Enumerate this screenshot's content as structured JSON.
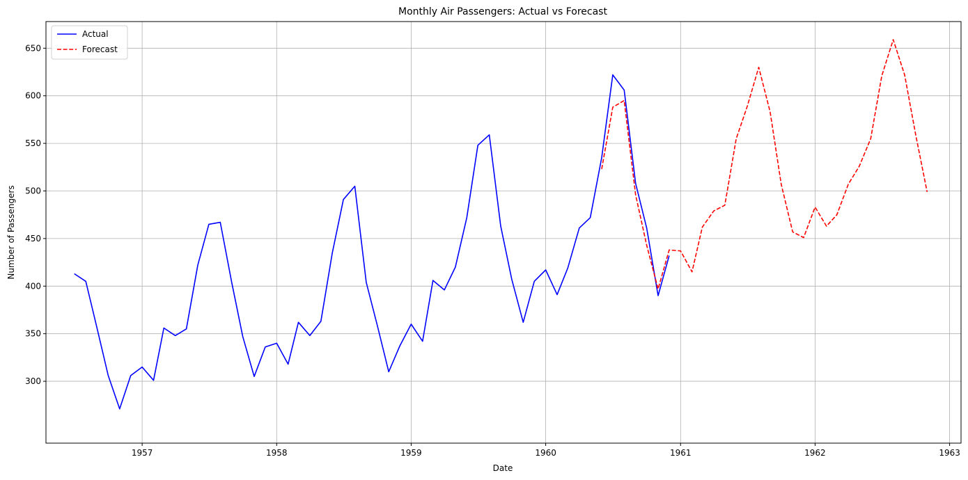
{
  "chart_data": {
    "type": "line",
    "title": "Monthly Air Passengers: Actual vs Forecast",
    "xlabel": "Date",
    "ylabel": "Number of Passengers",
    "xlim": [
      "1956-04-15",
      "1963-02-01"
    ],
    "ylim": [
      235,
      678
    ],
    "x_ticks": [
      "1957",
      "1958",
      "1959",
      "1960",
      "1961",
      "1962",
      "1963"
    ],
    "y_ticks": [
      300,
      350,
      400,
      450,
      500,
      550,
      600,
      650
    ],
    "grid": true,
    "legend_position": "top-left",
    "series": [
      {
        "name": "Actual",
        "color": "#0000ff",
        "style": "solid",
        "x": [
          "1956-07",
          "1956-08",
          "1956-09",
          "1956-10",
          "1956-11",
          "1956-12",
          "1957-01",
          "1957-02",
          "1957-03",
          "1957-04",
          "1957-05",
          "1957-06",
          "1957-07",
          "1957-08",
          "1957-09",
          "1957-10",
          "1957-11",
          "1957-12",
          "1958-01",
          "1958-02",
          "1958-03",
          "1958-04",
          "1958-05",
          "1958-06",
          "1958-07",
          "1958-08",
          "1958-09",
          "1958-10",
          "1958-11",
          "1958-12",
          "1959-01",
          "1959-02",
          "1959-03",
          "1959-04",
          "1959-05",
          "1959-06",
          "1959-07",
          "1959-08",
          "1959-09",
          "1959-10",
          "1959-11",
          "1959-12",
          "1960-01",
          "1960-02",
          "1960-03",
          "1960-04",
          "1960-05",
          "1960-06",
          "1960-07",
          "1960-08",
          "1960-09",
          "1960-10",
          "1960-11",
          "1960-12"
        ],
        "values": [
          413,
          405,
          355,
          306,
          271,
          306,
          315,
          301,
          356,
          348,
          355,
          422,
          465,
          467,
          404,
          347,
          305,
          336,
          340,
          318,
          362,
          348,
          363,
          435,
          491,
          505,
          404,
          359,
          310,
          337,
          360,
          342,
          406,
          396,
          420,
          472,
          548,
          559,
          463,
          407,
          362,
          405,
          417,
          391,
          419,
          461,
          472,
          535,
          622,
          606,
          508,
          461,
          390,
          432
        ]
      },
      {
        "name": "Forecast",
        "color": "#ff0000",
        "style": "dashed",
        "x": [
          "1960-06",
          "1960-07",
          "1960-08",
          "1960-09",
          "1960-10",
          "1960-11",
          "1960-12",
          "1961-01",
          "1961-02",
          "1961-03",
          "1961-04",
          "1961-05",
          "1961-06",
          "1961-07",
          "1961-08",
          "1961-09",
          "1961-10",
          "1961-11",
          "1961-12",
          "1962-01",
          "1962-02",
          "1962-03",
          "1962-04",
          "1962-05",
          "1962-06",
          "1962-07",
          "1962-08",
          "1962-09",
          "1962-10",
          "1962-11"
        ],
        "values": [
          523,
          588,
          595,
          496,
          443,
          397,
          438,
          437,
          415,
          462,
          479,
          485,
          555,
          589,
          630,
          583,
          507,
          457,
          451,
          483,
          463,
          475,
          507,
          526,
          555,
          621,
          659,
          622,
          559,
          499
        ]
      }
    ]
  }
}
